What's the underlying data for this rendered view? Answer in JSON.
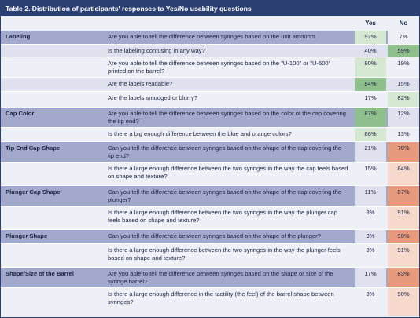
{
  "title": "Table 2. Distribution of participants' responses to Yes/No usability questions",
  "headers": {
    "yes": "Yes",
    "no": "No"
  },
  "colors": {
    "title_bg": "#2c3f73",
    "category_bg": "#a2a9cd",
    "band_light": "#dfe2ee",
    "band_pale": "#eef0f7",
    "yes_strong": "#8fbf8c",
    "yes_pale": "#d6e8d2",
    "no_strong": "#e89a7c",
    "no_pale": "#f6d9cc"
  },
  "rows": [
    {
      "category": "Labeling",
      "question": "Are you able to tell the difference between syringes based on the unit amounts",
      "yes": "92%",
      "no": "7%"
    },
    {
      "category": "",
      "question": "Is the labeling confusing in any way?",
      "yes": "40%",
      "no": "59%"
    },
    {
      "category": "",
      "question": "Are you able to tell the difference between syringes based on the \"U-100\" or \"U-500\" printed on the barrel?",
      "yes": "80%",
      "no": "19%"
    },
    {
      "category": "",
      "question": "Are the labels readable?",
      "yes": "84%",
      "no": "15%"
    },
    {
      "category": "",
      "question": "Are the labels smudged or blurry?",
      "yes": "17%",
      "no": "82%"
    },
    {
      "category": "Cap Color",
      "question": "Are you able to tell the difference between syringes based on the color of the cap covering the tip end?",
      "yes": "87%",
      "no": "12%"
    },
    {
      "category": "",
      "question": "Is there a big enough difference between the blue and orange colors?",
      "yes": "86%",
      "no": "13%"
    },
    {
      "category": "Tip End Cap Shape",
      "question": "Can you tell the difference between syringes based on the shape of the cap covering the tip end?",
      "yes": "21%",
      "no": "78%"
    },
    {
      "category": "",
      "question": "Is there a large enough difference between the two syringes in the way the cap feels based on shape and texture?",
      "yes": "15%",
      "no": "84%"
    },
    {
      "category": "Plunger Cap Shape",
      "question": "Can you tell the difference between syringes based on the shape of the cap covering the plunger?",
      "yes": "11%",
      "no": "87%"
    },
    {
      "category": "",
      "question": "Is there a large enough difference between the two syringes in the way the plunger cap feels based on shape and texture?",
      "yes": "8%",
      "no": "91%"
    },
    {
      "category": "Plunger Shape",
      "question": "Can you tell the difference between syringes based on the shape of the plunger?",
      "yes": "9%",
      "no": "90%"
    },
    {
      "category": "",
      "question": "Is there a large enough difference between the two syringes in the way the plunger feels based on shape and texture?",
      "yes": "8%",
      "no": "91%"
    },
    {
      "category": "Shape/Size of the Barrel",
      "question": "Are you able to tell the difference between syringes based on the shape or size of the syringe barrel?",
      "yes": "17%",
      "no": "83%"
    },
    {
      "category": "",
      "question": "Is there a large enough difference in the tactility (the feel) of the barrel shape between syringes?",
      "yes": "8%",
      "no": "90%"
    }
  ]
}
